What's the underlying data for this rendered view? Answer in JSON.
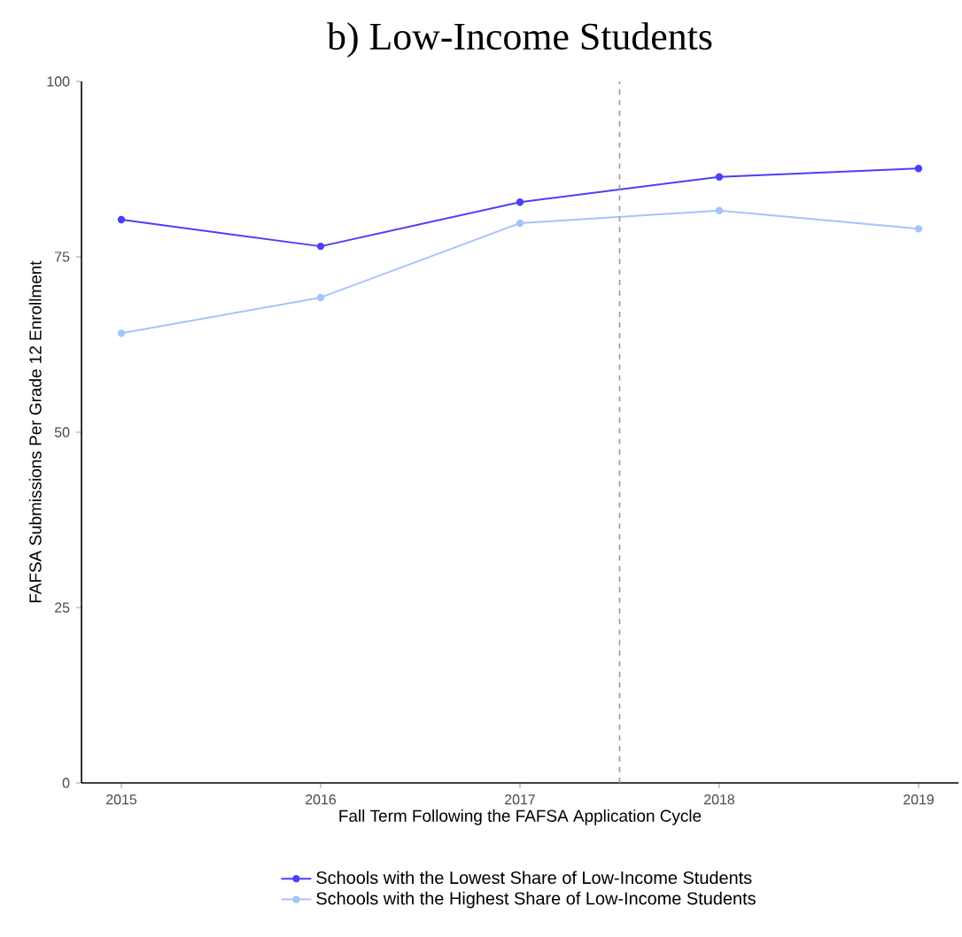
{
  "chart_data": {
    "type": "line",
    "title": "b) Low-Income Students",
    "xlabel": "Fall Term Following the FAFSA Application Cycle",
    "ylabel": "FAFSA Submissions Per Grade 12 Enrollment",
    "x": [
      2015,
      2016,
      2017,
      2018,
      2019
    ],
    "series": [
      {
        "name": "Schools with the Lowest Share of Low-Income Students",
        "color": "#4b3ff7",
        "values": [
          80.3,
          76.5,
          82.8,
          86.4,
          87.6
        ]
      },
      {
        "name": "Schools with the Highest Share of Low-Income Students",
        "color": "#a6c4fb",
        "values": [
          64.1,
          69.2,
          79.8,
          81.6,
          79.0
        ]
      }
    ],
    "xlim": [
      2014.8,
      2019.2
    ],
    "ylim": [
      0,
      100
    ],
    "xticks": [
      2015,
      2016,
      2017,
      2018,
      2019
    ],
    "yticks": [
      0,
      25,
      50,
      75,
      100
    ],
    "ref_lines": [
      {
        "axis": "x",
        "value": 2017.5,
        "color": "#999999",
        "line_style": "dashed"
      }
    ],
    "grid": false,
    "legend": "bottom",
    "marker": "circle",
    "line_style": "solid"
  }
}
